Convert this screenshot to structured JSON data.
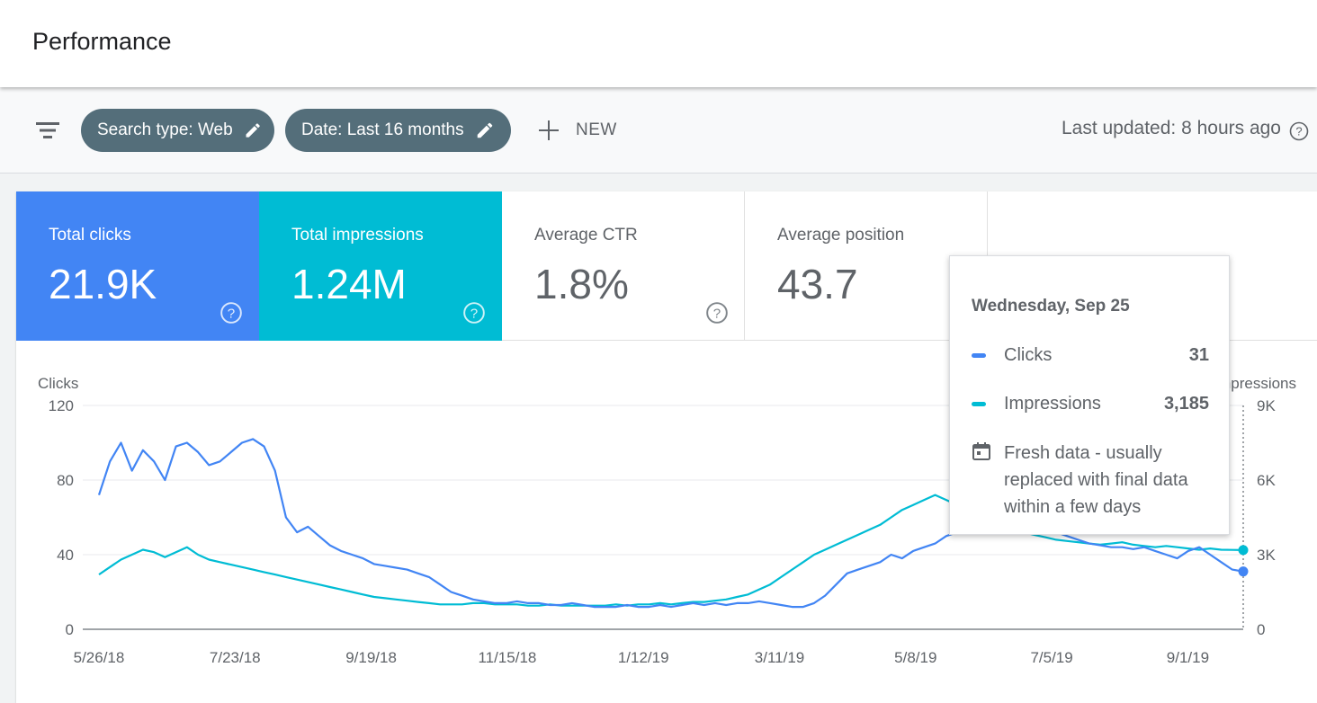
{
  "header": {
    "title": "Performance"
  },
  "toolbar": {
    "chip_search": "Search type: Web",
    "chip_date": "Date: Last 16 months",
    "new_label": "NEW",
    "last_updated": "Last updated: 8 hours ago"
  },
  "metrics": [
    {
      "label": "Total clicks",
      "value": "21.9K"
    },
    {
      "label": "Total impressions",
      "value": "1.24M"
    },
    {
      "label": "Average CTR",
      "value": "1.8%"
    },
    {
      "label": "Average position",
      "value": "43.7"
    }
  ],
  "colors": {
    "clicks": "#4285f4",
    "impressions": "#00bcd4",
    "chip": "#546e7a"
  },
  "icons": [
    "filter-icon",
    "edit-icon",
    "plus-icon",
    "help-icon",
    "calendar-icon"
  ],
  "tooltip": {
    "date": "Wednesday, Sep 25",
    "rows": [
      {
        "name": "Clicks",
        "value": "31"
      },
      {
        "name": "Impressions",
        "value": "3,185"
      }
    ],
    "fresh_lines": [
      "Fresh data - usually",
      "replaced with final data",
      "within a few days"
    ]
  },
  "chart_data": {
    "type": "line",
    "left_axis_title": "Clicks",
    "right_axis_title": "Impressions",
    "left_ticks": [
      "0",
      "40",
      "80",
      "120"
    ],
    "right_ticks": [
      "0",
      "3K",
      "6K",
      "9K"
    ],
    "ylim_left": [
      0,
      120
    ],
    "ylim_right": [
      0,
      9000
    ],
    "x_ticks": [
      "5/26/18",
      "7/23/18",
      "9/19/18",
      "11/15/18",
      "1/12/19",
      "3/11/19",
      "5/8/19",
      "7/5/19",
      "9/1/19"
    ],
    "date_range": [
      "2018-05-26",
      "2019-09-25"
    ],
    "series": [
      {
        "name": "Clicks",
        "axis": "left",
        "values": [
          72,
          90,
          100,
          85,
          96,
          90,
          80,
          98,
          100,
          95,
          88,
          90,
          95,
          100,
          102,
          98,
          85,
          60,
          52,
          55,
          50,
          45,
          42,
          40,
          38,
          35,
          34,
          33,
          32,
          30,
          28,
          24,
          20,
          18,
          16,
          15,
          14,
          14,
          15,
          14,
          14,
          13,
          13,
          14,
          13,
          12,
          12,
          12,
          13,
          12,
          12,
          13,
          12,
          13,
          14,
          13,
          14,
          13,
          14,
          14,
          15,
          14,
          13,
          12,
          12,
          14,
          18,
          24,
          30,
          32,
          34,
          36,
          40,
          38,
          42,
          44,
          46,
          50,
          52,
          58,
          60,
          64,
          62,
          60,
          58,
          56,
          54,
          52,
          50,
          48,
          46,
          45,
          44,
          44,
          43,
          44,
          42,
          40,
          38,
          42,
          44,
          40,
          36,
          32,
          31
        ]
      },
      {
        "name": "Impressions",
        "axis": "right",
        "values": [
          2200,
          2500,
          2800,
          3000,
          3200,
          3100,
          2900,
          3100,
          3300,
          3000,
          2800,
          2700,
          2600,
          2500,
          2400,
          2300,
          2200,
          2100,
          2000,
          1900,
          1800,
          1700,
          1600,
          1500,
          1400,
          1300,
          1250,
          1200,
          1150,
          1100,
          1050,
          1000,
          1000,
          1000,
          1050,
          1050,
          1000,
          1000,
          1000,
          950,
          950,
          1000,
          950,
          950,
          950,
          950,
          950,
          1000,
          950,
          1000,
          1000,
          1050,
          1000,
          1050,
          1100,
          1100,
          1150,
          1200,
          1300,
          1400,
          1600,
          1800,
          2100,
          2400,
          2700,
          3000,
          3200,
          3400,
          3600,
          3800,
          4000,
          4200,
          4500,
          4800,
          5000,
          5200,
          5400,
          5200,
          5000,
          4800,
          4600,
          4400,
          4200,
          4000,
          3900,
          3800,
          3700,
          3600,
          3550,
          3500,
          3450,
          3400,
          3450,
          3500,
          3400,
          3350,
          3300,
          3350,
          3300,
          3250,
          3200,
          3250,
          3200,
          3190,
          3185
        ]
      }
    ]
  }
}
